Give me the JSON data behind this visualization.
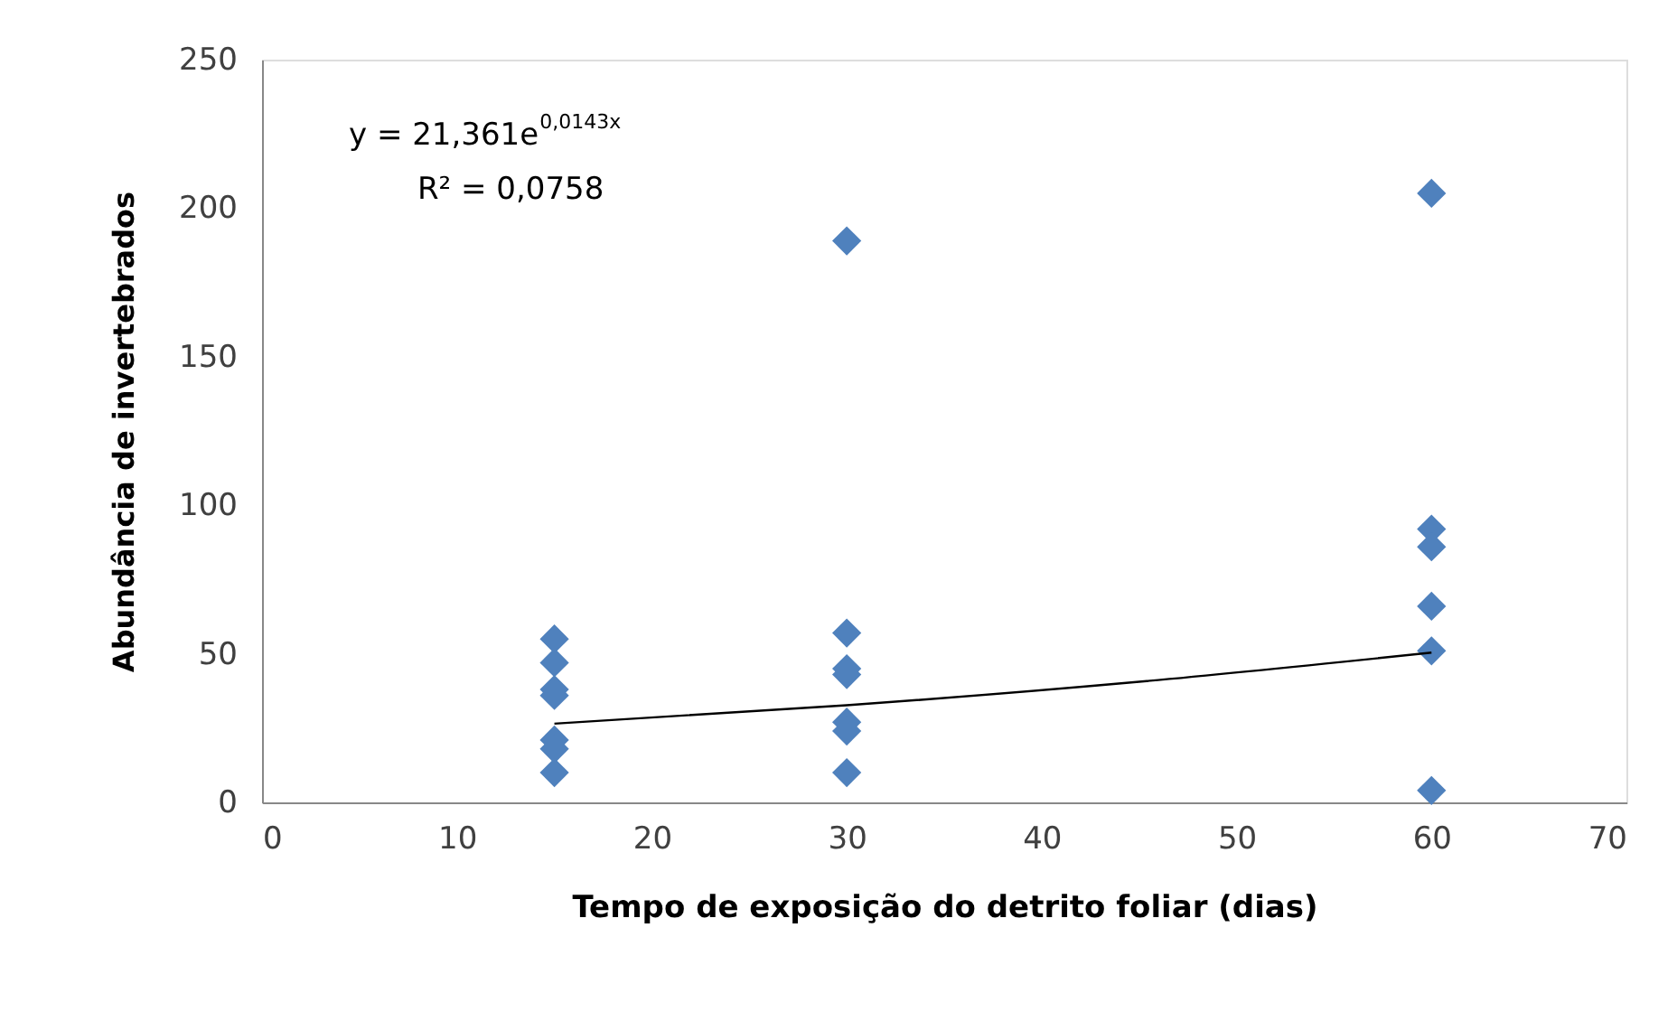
{
  "chart_data": {
    "type": "scatter",
    "xlabel": "Tempo de exposição do detrito foliar (dias)",
    "ylabel": "Abundância de invertebrados",
    "annotations": [
      "y = 21,361e$^{0,0143x}$",
      "R² = 0,0758"
    ],
    "xlim": [
      0,
      70
    ],
    "xticks": [
      0,
      10,
      20,
      30,
      40,
      50,
      60,
      70
    ],
    "ylim": [
      0,
      250
    ],
    "yticks": [
      0,
      50,
      100,
      150,
      200,
      250
    ],
    "grid": false,
    "marker": "diamond",
    "series": [
      {
        "color": "#4f81bd",
        "x": [
          15,
          15,
          15,
          15,
          15,
          15,
          15,
          30,
          30,
          30,
          30,
          30,
          30,
          30,
          60,
          60,
          60,
          60,
          60,
          60
        ],
        "values": [
          55,
          47,
          38,
          36,
          21,
          18,
          10,
          57,
          45,
          43,
          27,
          24,
          10,
          189,
          205,
          92,
          86,
          66,
          51,
          4
        ]
      },
      {
        "type": "line",
        "color": "#000000",
        "line_style": "solid",
        "marker": "none",
        "x": [
          15,
          30,
          45,
          60
        ],
        "values": [
          26.5,
          32.7,
          40.6,
          50.4
        ]
      }
    ]
  }
}
